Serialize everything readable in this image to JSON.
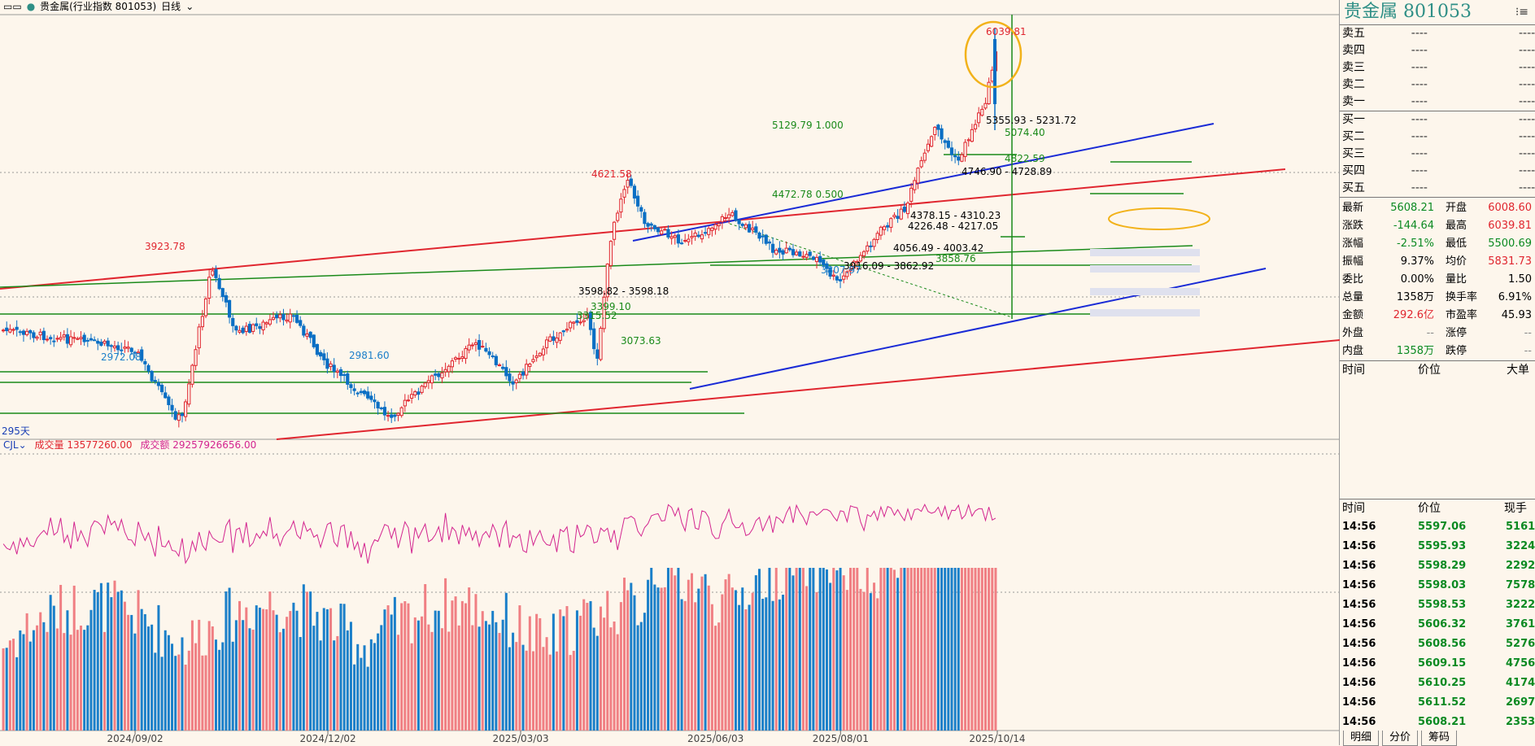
{
  "header": {
    "glyph": "▭▭",
    "dot": "●",
    "name": "贵金属(行业指数 801053)",
    "period": "日线"
  },
  "chart_data": [
    {
      "type": "candlestick",
      "title": "贵金属(行业指数 801053)",
      "x_ticks": [
        "2024/09/02",
        "2024/12/02",
        "2025/03/03",
        "2025/06/03",
        "2025/08/01",
        "2025/10/14"
      ],
      "bar_count_label": "295天",
      "ylim": [
        2900,
        6100
      ],
      "approx_close_path": [
        [
          "2024-07",
          3500
        ],
        [
          "2024-09-02",
          3380
        ],
        [
          "2024-09-20",
          3000
        ],
        [
          "2024-09-24",
          2972.08
        ],
        [
          "2024-10-08",
          3923.78
        ],
        [
          "2024-10-20",
          3480
        ],
        [
          "2024-11-15",
          3600
        ],
        [
          "2024-12-02",
          3280
        ],
        [
          "2024-12-31",
          2981.6
        ],
        [
          "2025-01-20",
          3200
        ],
        [
          "2025-02-10",
          3420
        ],
        [
          "2025-02-28",
          3180
        ],
        [
          "2025-03-15",
          3420
        ],
        [
          "2025-04-03",
          3598.82
        ],
        [
          "2025-04-08",
          3315.52
        ],
        [
          "2025-04-15",
          4200
        ],
        [
          "2025-04-22",
          4621.58
        ],
        [
          "2025-05-01",
          4260
        ],
        [
          "2025-05-20",
          4100
        ],
        [
          "2025-06-10",
          4330
        ],
        [
          "2025-07-01",
          4050
        ],
        [
          "2025-07-20",
          4000
        ],
        [
          "2025-07-31",
          3807.97
        ],
        [
          "2025-08-20",
          4200
        ],
        [
          "2025-09-01",
          4378.15
        ],
        [
          "2025-09-05",
          4600
        ],
        [
          "2025-09-15",
          5074.4
        ],
        [
          "2025-09-25",
          4746.9
        ],
        [
          "2025-10-09",
          5355.93
        ],
        [
          "2025-10-13",
          5800
        ],
        [
          "2025-10-14",
          6039.81
        ],
        [
          "2025-10-14",
          5608.21
        ]
      ],
      "annotations": [
        {
          "text": "6039.81",
          "kind": "high",
          "value": 6039.81,
          "date": "2025-10-14"
        },
        {
          "text": "5355.93 - 5231.72",
          "kind": "gap",
          "value": 5300
        },
        {
          "text": "5074.40",
          "kind": "level",
          "value": 5074.4
        },
        {
          "text": "4822.59",
          "kind": "level",
          "value": 4822.59
        },
        {
          "text": "4746.90 - 4728.89",
          "kind": "gap",
          "value": 4737
        },
        {
          "text": "5129.79  1.000",
          "kind": "fib",
          "value": 5129.79
        },
        {
          "text": "4472.78  0.500",
          "kind": "fib",
          "value": 4472.78
        },
        {
          "text": "4621.58",
          "kind": "high",
          "value": 4621.58
        },
        {
          "text": "4378.15 - 4310.23",
          "kind": "gap",
          "value": 4344
        },
        {
          "text": "4226.48 - 4217.05",
          "kind": "gap",
          "value": 4221
        },
        {
          "text": "4056.49 - 4003.42",
          "kind": "gap",
          "value": 4030
        },
        {
          "text": "3916.09 - 3862.92",
          "kind": "gap",
          "value": 3890
        },
        {
          "text": "3858.76",
          "kind": "level",
          "value": 3858.76
        },
        {
          "text": "3807.97",
          "kind": "low",
          "value": 3807.97
        },
        {
          "text": "3923.78",
          "kind": "high",
          "value": 3923.78
        },
        {
          "text": "3598.82 - 3598.18",
          "kind": "gap",
          "value": 3598.5
        },
        {
          "text": "3399.10",
          "kind": "level",
          "value": 3399.1
        },
        {
          "text": "3315.52",
          "kind": "low",
          "value": 3315.52
        },
        {
          "text": "3073.63",
          "kind": "level",
          "value": 3073.63
        },
        {
          "text": "2972.08",
          "kind": "low",
          "value": 2972.08
        },
        {
          "text": "2981.60",
          "kind": "low",
          "value": 2981.6
        }
      ],
      "indicators": [
        "trend channel (blue)",
        "trend channel (red)",
        "support/resistance levels (green)",
        "fibonacci levels"
      ]
    },
    {
      "type": "bar",
      "title": "CJL",
      "series": [
        {
          "name": "成交量",
          "value_label": "13577260.00"
        },
        {
          "name": "成交额",
          "value_label": "29257926656.00"
        }
      ],
      "notes": "Volume bars (red = up day, blue = down day) with a pink turnover line."
    }
  ],
  "vol_header": {
    "indicator": "CJL",
    "vol_label": "成交量",
    "vol_value": "13577260.00",
    "amt_label": "成交额",
    "amt_value": "29257926656.00"
  },
  "panel": {
    "title": "贵金属  801053",
    "menu_icon": "⁝≡",
    "sell": [
      {
        "label": "卖五",
        "price": "----",
        "vol": "----"
      },
      {
        "label": "卖四",
        "price": "----",
        "vol": "----"
      },
      {
        "label": "卖三",
        "price": "----",
        "vol": "----"
      },
      {
        "label": "卖二",
        "price": "----",
        "vol": "----"
      },
      {
        "label": "卖一",
        "price": "----",
        "vol": "----"
      }
    ],
    "buy": [
      {
        "label": "买一",
        "price": "----",
        "vol": "----"
      },
      {
        "label": "买二",
        "price": "----",
        "vol": "----"
      },
      {
        "label": "买三",
        "price": "----",
        "vol": "----"
      },
      {
        "label": "买四",
        "price": "----",
        "vol": "----"
      },
      {
        "label": "买五",
        "price": "----",
        "vol": "----"
      }
    ],
    "stats": [
      {
        "l1": "最新",
        "v1": "5608.21",
        "c1": "green",
        "l2": "开盘",
        "v2": "6008.60",
        "c2": "red"
      },
      {
        "l1": "涨跌",
        "v1": "-144.64",
        "c1": "green",
        "l2": "最高",
        "v2": "6039.81",
        "c2": "red"
      },
      {
        "l1": "涨幅",
        "v1": "-2.51%",
        "c1": "green",
        "l2": "最低",
        "v2": "5500.69",
        "c2": "green"
      },
      {
        "l1": "振幅",
        "v1": "9.37%",
        "c1": "blk",
        "l2": "均价",
        "v2": "5831.73",
        "c2": "red"
      },
      {
        "l1": "委比",
        "v1": "0.00%",
        "c1": "blk",
        "l2": "量比",
        "v2": "1.50",
        "c2": "blk"
      },
      {
        "l1": "总量",
        "v1": "1358万",
        "c1": "blk",
        "l2": "换手率",
        "v2": "6.91%",
        "c2": "blk"
      },
      {
        "l1": "金额",
        "v1": "292.6亿",
        "c1": "red",
        "l2": "市盈率",
        "v2": "45.93",
        "c2": "blk"
      },
      {
        "l1": "外盘",
        "v1": "--",
        "c1": "gray",
        "l2": "涨停",
        "v2": "--",
        "c2": "gray"
      },
      {
        "l1": "内盘",
        "v1": "1358万",
        "c1": "green",
        "l2": "跌停",
        "v2": "--",
        "c2": "gray"
      }
    ],
    "big_orders_head": {
      "time": "时间",
      "price": "价位",
      "type": "大单"
    },
    "trades_head": {
      "time": "时间",
      "price": "价位",
      "vol": "现手"
    },
    "trades": [
      {
        "time": "14:56",
        "price": "5597.06",
        "vol": "5161"
      },
      {
        "time": "14:56",
        "price": "5595.93",
        "vol": "3224"
      },
      {
        "time": "14:56",
        "price": "5598.29",
        "vol": "2292"
      },
      {
        "time": "14:56",
        "price": "5598.03",
        "vol": "7578"
      },
      {
        "time": "14:56",
        "price": "5598.53",
        "vol": "3222"
      },
      {
        "time": "14:56",
        "price": "5606.32",
        "vol": "3761"
      },
      {
        "time": "14:56",
        "price": "5608.56",
        "vol": "5276"
      },
      {
        "time": "14:56",
        "price": "5609.15",
        "vol": "4756"
      },
      {
        "time": "14:56",
        "price": "5610.25",
        "vol": "4174"
      },
      {
        "time": "14:56",
        "price": "5611.52",
        "vol": "2697"
      },
      {
        "time": "14:56",
        "price": "5608.21",
        "vol": "2353"
      }
    ],
    "tabs": [
      "明细",
      "分价",
      "筹码"
    ],
    "colors": {
      "up": "#e0262f",
      "down": "#0b8a22",
      "title": "#2f8f86"
    }
  }
}
